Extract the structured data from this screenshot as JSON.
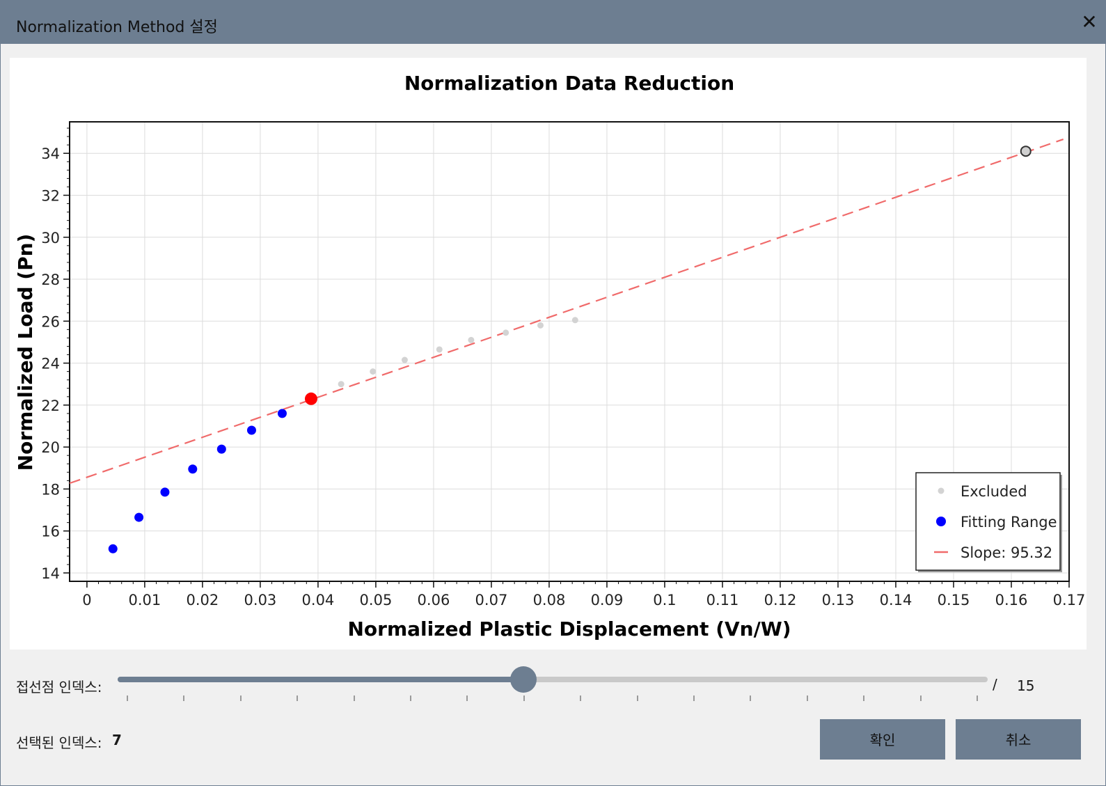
{
  "window": {
    "title": "Normalization Method 설정",
    "close_glyph": "✕"
  },
  "chart_data": {
    "type": "scatter",
    "title": "Normalization Data Reduction",
    "xlabel": "Normalized Plastic Displacement (Vn/W)",
    "ylabel": "Normalized Load (Pn)",
    "xlim": [
      -0.003,
      0.17
    ],
    "ylim": [
      13.6,
      35.5
    ],
    "x_ticks": [
      0,
      0.01,
      0.02,
      0.03,
      0.04,
      0.05,
      0.06,
      0.07,
      0.08,
      0.09,
      0.1,
      0.11,
      0.12,
      0.13,
      0.14,
      0.15,
      0.16,
      0.17
    ],
    "y_ticks": [
      14,
      16,
      18,
      20,
      22,
      24,
      26,
      28,
      30,
      32,
      34
    ],
    "grid": true,
    "legend_position": "bottom-right",
    "series": [
      {
        "name": "Excluded",
        "color": "#d3d3d3",
        "points": [
          [
            0.044,
            23.0
          ],
          [
            0.0495,
            23.6
          ],
          [
            0.055,
            24.15
          ],
          [
            0.061,
            24.65
          ],
          [
            0.0665,
            25.1
          ],
          [
            0.0725,
            25.45
          ],
          [
            0.0785,
            25.8
          ],
          [
            0.0845,
            26.05
          ]
        ]
      },
      {
        "name": "Fitting Range",
        "color": "#0000ff",
        "points": [
          [
            0.0045,
            15.15
          ],
          [
            0.009,
            16.65
          ],
          [
            0.0135,
            17.85
          ],
          [
            0.0183,
            18.95
          ],
          [
            0.0233,
            19.9
          ],
          [
            0.0285,
            20.8
          ],
          [
            0.0338,
            21.6
          ]
        ]
      },
      {
        "name": "Slope: 95.32",
        "type": "line",
        "style": "dashed",
        "color": "#f06a6a",
        "slope": 95.32,
        "intercept": 18.56,
        "x_range": [
          -0.003,
          0.169
        ]
      }
    ],
    "markers": [
      {
        "role": "selected-tangent-point",
        "x": 0.0388,
        "y": 22.3,
        "color": "#ff0000"
      },
      {
        "role": "end-point",
        "x": 0.1625,
        "y": 34.1,
        "color": "#333333"
      }
    ]
  },
  "slider": {
    "label": "접선점 인덱스:",
    "value": 7,
    "max": 15,
    "separator": "/",
    "max_label": "15"
  },
  "selection": {
    "label": "선택된 인덱스:",
    "value": "7"
  },
  "buttons": {
    "ok": "확인",
    "cancel": "취소"
  },
  "colors": {
    "accent": "#6d7e91",
    "track": "#c9c9c9"
  }
}
